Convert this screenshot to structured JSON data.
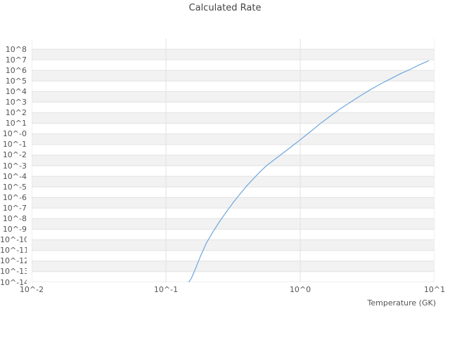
{
  "title": "Calculated Rate",
  "x_axis": {
    "label": "Temperature (GK)",
    "tick_labels": [
      "10^-2",
      "10^-1",
      "10^0",
      "10^1"
    ],
    "tick_log_values": [
      -2,
      -1,
      0,
      1
    ],
    "log_min": -2,
    "log_max": 1
  },
  "y_axis": {
    "tick_labels": [
      "10^8",
      "10^7",
      "10^6",
      "10^5",
      "10^4",
      "10^3",
      "10^2",
      "10^1",
      "10^-0",
      "10^-1",
      "10^-2",
      "10^-3",
      "10^-4",
      "10^-5",
      "10^-6",
      "10^-7",
      "10^-8",
      "10^-9",
      "10^-10",
      "10^-11",
      "10^-12",
      "10^-13",
      "10^-14"
    ],
    "tick_log_values": [
      8,
      7,
      6,
      5,
      4,
      3,
      2,
      1,
      0,
      -1,
      -2,
      -3,
      -4,
      -5,
      -6,
      -7,
      -8,
      -9,
      -10,
      -11,
      -12,
      -13,
      -14
    ],
    "log_min": -14,
    "log_max": 9
  },
  "chart_data": {
    "type": "line",
    "title": "Calculated Rate",
    "xlabel": "Temperature (GK)",
    "ylabel": "",
    "x_scale": "log",
    "y_scale": "log",
    "xlim_log": [
      -2,
      1
    ],
    "ylim_log": [
      -14,
      9
    ],
    "grid": true,
    "legend": "none",
    "colors": {
      "line": "#6ea6de",
      "grid": "#e2e2e2",
      "band": "#f2f2f2",
      "tick_text": "#555555",
      "title_text": "#444444",
      "background": "#ffffff"
    },
    "series": [
      {
        "name": "Calculated Rate",
        "points_x_GK": [
          0.148,
          0.155,
          0.165,
          0.18,
          0.2,
          0.225,
          0.25,
          0.28,
          0.32,
          0.36,
          0.4,
          0.45,
          0.5,
          0.56,
          0.63,
          0.71,
          0.8,
          0.9,
          1.0,
          1.2,
          1.4,
          1.7,
          2.0,
          2.4,
          2.8,
          3.3,
          4.0,
          4.7,
          5.6,
          6.6,
          7.8,
          9.0
        ],
        "points_log10_rate": [
          -14,
          -13.6,
          -12.8,
          -11.6,
          -10.3,
          -9.2,
          -8.3,
          -7.4,
          -6.4,
          -5.6,
          -4.9,
          -4.2,
          -3.6,
          -3.0,
          -2.5,
          -2.0,
          -1.5,
          -1.0,
          -0.55,
          0.25,
          0.95,
          1.75,
          2.4,
          3.05,
          3.6,
          4.15,
          4.75,
          5.2,
          5.7,
          6.1,
          6.55,
          6.9
        ]
      }
    ]
  }
}
